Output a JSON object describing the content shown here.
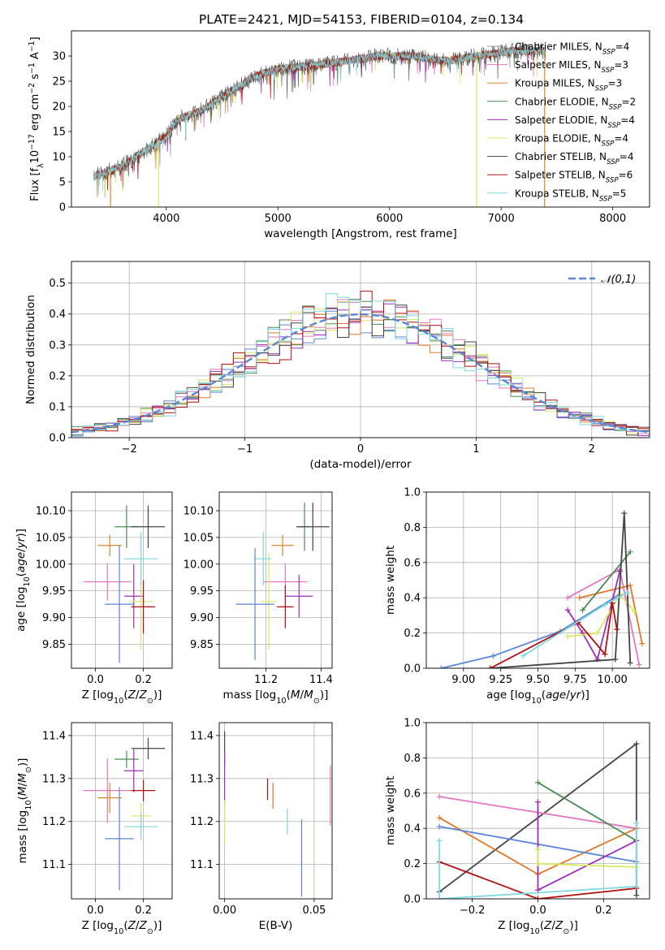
{
  "title": "PLATE=2421, MJD=54153, FIBERID=0104, z=0.134",
  "colors": {
    "chabrier_miles": "#9e9e9e",
    "salpeter_miles": "#e377c2",
    "kroupa_miles": "#d4892a",
    "chabrier_elodie": "#4c8a55",
    "salpeter_elodie": "#9b30b4",
    "kroupa_elodie": "#d8e860",
    "chabrier_stelib": "#444444",
    "salpeter_stelib": "#b01010",
    "kroupa_stelib": "#7fd8e0",
    "blue": "#5b86d6",
    "orange": "#e0782a",
    "normal": "#5b86d6",
    "grid": "#b0b0b0"
  },
  "chart_data": [
    {
      "id": "spectrum",
      "type": "line",
      "xlabel": "wavelength [Angstrom, rest frame]",
      "ylabel": "Flux [f_λ10^-17 erg cm^-2 s^-1 A^-1]",
      "xlim": [
        3150,
        8330
      ],
      "ylim": [
        0,
        35
      ],
      "xticks": [
        4000,
        5000,
        6000,
        7000,
        8000
      ],
      "yticks": [
        0,
        5,
        10,
        15,
        20,
        25,
        30
      ],
      "grid": false,
      "legend_position": "right",
      "legend": [
        {
          "label": "Chabrier MILES, N",
          "sub": "SSP",
          "tail": "=4"
        },
        {
          "label": "Salpeter MILES, N",
          "sub": "SSP",
          "tail": "=3"
        },
        {
          "label": "Kroupa MILES, N",
          "sub": "SSP",
          "tail": "=3"
        },
        {
          "label": "Chabrier ELODIE, N",
          "sub": "SSP",
          "tail": "=2"
        },
        {
          "label": "Salpeter ELODIE, N",
          "sub": "SSP",
          "tail": "=4"
        },
        {
          "label": "Kroupa ELODIE, N",
          "sub": "SSP",
          "tail": "=4"
        },
        {
          "label": "Chabrier STELIB, N",
          "sub": "SSP",
          "tail": "=4"
        },
        {
          "label": "Salpeter STELIB, N",
          "sub": "SSP",
          "tail": "=6"
        },
        {
          "label": "Kroupa STELIB, N",
          "sub": "SSP",
          "tail": "=5"
        }
      ],
      "continuum": {
        "x": [
          3350,
          3600,
          3800,
          4000,
          4100,
          4300,
          4500,
          4800,
          5000,
          5300,
          5600,
          5900,
          6200,
          6500,
          6800,
          7100,
          7400
        ],
        "y": [
          6,
          8,
          11,
          14,
          17.5,
          19,
          22,
          26,
          27.5,
          28,
          29,
          30,
          30,
          29,
          30,
          31,
          31
        ]
      },
      "dropouts": [
        {
          "x": 3500,
          "y": 0
        },
        {
          "x": 3930,
          "y": 0
        },
        {
          "x": 6780,
          "y": 0
        },
        {
          "x": 7390,
          "y": 0
        }
      ]
    },
    {
      "id": "residuals",
      "type": "histogram",
      "xlabel": "(data-model)/error",
      "ylabel": "Normed distribution",
      "xlim": [
        -2.5,
        2.5
      ],
      "ylim": [
        0,
        0.57
      ],
      "xticks": [
        -2,
        -1,
        0,
        1,
        2
      ],
      "yticks": [
        0.0,
        0.1,
        0.2,
        0.3,
        0.4,
        0.5
      ],
      "grid": true,
      "legend_position": "top-right",
      "series": [
        {
          "name": "𝒩(0,1)",
          "type": "gaussian",
          "mean": 0,
          "sigma": 1,
          "style": "dashed"
        }
      ],
      "bin_width": 0.1
    },
    {
      "id": "age_vs_Z",
      "type": "errorbar",
      "xlabel": "Z [log10(Z/Z⊙)]",
      "ylabel": "age  [log10(age/yr)]",
      "xlim": [
        -0.1,
        0.32
      ],
      "ylim": [
        9.805,
        10.135
      ],
      "xticks": [
        0.0,
        0.2
      ],
      "yticks": [
        9.85,
        9.9,
        9.95,
        10.0,
        10.05,
        10.1
      ],
      "grid": true,
      "points": [
        {
          "c": "salpeter_miles",
          "x": 0.05,
          "y": 9.967,
          "xe": 0.1,
          "ye": 0.035
        },
        {
          "c": "kroupa_miles",
          "x": 0.06,
          "y": 10.035,
          "xe": 0.05,
          "ye": 0.02
        },
        {
          "c": "chabrier_elodie",
          "x": 0.13,
          "y": 10.07,
          "xe": 0.05,
          "ye": 0.04
        },
        {
          "c": "salpeter_elodie",
          "x": 0.16,
          "y": 9.94,
          "xe": 0.04,
          "ye": 0.06
        },
        {
          "c": "kroupa_elodie",
          "x": 0.19,
          "y": 9.93,
          "xe": 0.05,
          "ye": 0.09
        },
        {
          "c": "chabrier_stelib",
          "x": 0.22,
          "y": 10.07,
          "xe": 0.07,
          "ye": 0.04
        },
        {
          "c": "salpeter_stelib",
          "x": 0.2,
          "y": 9.92,
          "xe": 0.05,
          "ye": 0.05
        },
        {
          "c": "kroupa_stelib",
          "x": 0.19,
          "y": 10.01,
          "xe": 0.07,
          "ye": 0.05
        },
        {
          "c": "blue",
          "x": 0.1,
          "y": 9.925,
          "xe": 0.06,
          "ye": 0.11
        }
      ]
    },
    {
      "id": "age_vs_mass",
      "type": "errorbar",
      "xlabel": "mass [log10(M/M⊙)]",
      "ylabel": "",
      "xlim": [
        11.03,
        11.44
      ],
      "ylim": [
        9.805,
        10.135
      ],
      "xticks": [
        11.2,
        11.4
      ],
      "yticks": [
        9.85,
        9.9,
        9.95,
        10.0,
        10.05,
        10.1
      ],
      "grid": true,
      "points": [
        {
          "c": "salpeter_miles",
          "x": 11.27,
          "y": 9.967,
          "xe": 0.08,
          "ye": 0.035
        },
        {
          "c": "kroupa_miles",
          "x": 11.26,
          "y": 10.035,
          "xe": 0.04,
          "ye": 0.02
        },
        {
          "c": "chabrier_elodie",
          "x": 11.34,
          "y": 10.07,
          "xe": 0.02,
          "ye": 0.045
        },
        {
          "c": "salpeter_elodie",
          "x": 11.32,
          "y": 9.94,
          "xe": 0.05,
          "ye": 0.04
        },
        {
          "c": "kroupa_elodie",
          "x": 11.21,
          "y": 9.93,
          "xe": 0.03,
          "ye": 0.09
        },
        {
          "c": "chabrier_stelib",
          "x": 11.37,
          "y": 10.07,
          "xe": 0.06,
          "ye": 0.045
        },
        {
          "c": "salpeter_stelib",
          "x": 11.27,
          "y": 9.92,
          "xe": 0.03,
          "ye": 0.04
        },
        {
          "c": "kroupa_stelib",
          "x": 11.19,
          "y": 10.01,
          "xe": 0.03,
          "ye": 0.05
        },
        {
          "c": "blue",
          "x": 11.16,
          "y": 9.925,
          "xe": 0.07,
          "ye": 0.105
        }
      ]
    },
    {
      "id": "mass_weight_vs_age",
      "type": "line",
      "xlabel": "age  [log10(age/yr)]",
      "ylabel": "mass weight",
      "xlim": [
        8.75,
        10.25
      ],
      "ylim": [
        0,
        1.0
      ],
      "xticks": [
        9.0,
        9.25,
        9.5,
        9.75,
        10.0
      ],
      "yticks": [
        0.0,
        0.2,
        0.4,
        0.6,
        0.8,
        1.0
      ],
      "grid": true,
      "series": [
        {
          "c": "blue",
          "x": [
            8.85,
            9.2,
            9.65,
            10.05
          ],
          "y": [
            0.0,
            0.07,
            0.21,
            0.42
          ]
        },
        {
          "c": "salpeter_miles",
          "x": [
            9.7,
            10.05,
            10.18
          ],
          "y": [
            0.4,
            0.56,
            0.02
          ]
        },
        {
          "c": "orange",
          "x": [
            9.78,
            10.12,
            10.2
          ],
          "y": [
            0.4,
            0.47,
            0.14
          ]
        },
        {
          "c": "chabrier_elodie",
          "x": [
            9.8,
            10.12
          ],
          "y": [
            0.33,
            0.66
          ]
        },
        {
          "c": "salpeter_elodie",
          "x": [
            9.7,
            9.8,
            9.9,
            10.05
          ],
          "y": [
            0.33,
            0.2,
            0.05,
            0.55
          ]
        },
        {
          "c": "kroupa_elodie",
          "x": [
            9.7,
            9.9,
            10.05,
            10.15
          ],
          "y": [
            0.18,
            0.2,
            0.42,
            0.32
          ]
        },
        {
          "c": "chabrier_stelib",
          "x": [
            9.18,
            10.02,
            10.08,
            10.12
          ],
          "y": [
            0.0,
            0.05,
            0.88,
            0.03
          ]
        },
        {
          "c": "salpeter_stelib",
          "x": [
            9.18,
            9.77,
            9.95,
            10.0,
            10.03
          ],
          "y": [
            0.0,
            0.26,
            0.08,
            0.37,
            0.22
          ]
        },
        {
          "c": "kroupa_stelib",
          "x": [
            9.4,
            9.95,
            10.1
          ],
          "y": [
            0.07,
            0.36,
            0.43
          ]
        }
      ]
    },
    {
      "id": "mass_vs_Z",
      "type": "errorbar",
      "xlabel": "Z [log10(Z/Z⊙)]",
      "ylabel": "mass [log10(M/M⊙)]",
      "xlim": [
        -0.1,
        0.32
      ],
      "ylim": [
        11.02,
        11.43
      ],
      "xticks": [
        0.0,
        0.2
      ],
      "yticks": [
        11.1,
        11.2,
        11.3,
        11.4
      ],
      "grid": true,
      "points": [
        {
          "c": "salpeter_miles",
          "x": 0.05,
          "y": 11.272,
          "xe": 0.1,
          "ye": 0.075
        },
        {
          "c": "kroupa_miles",
          "x": 0.06,
          "y": 11.255,
          "xe": 0.05,
          "ye": 0.035
        },
        {
          "c": "chabrier_elodie",
          "x": 0.13,
          "y": 11.345,
          "xe": 0.05,
          "ye": 0.02
        },
        {
          "c": "salpeter_elodie",
          "x": 0.16,
          "y": 11.318,
          "xe": 0.04,
          "ye": 0.05
        },
        {
          "c": "kroupa_elodie",
          "x": 0.19,
          "y": 11.213,
          "xe": 0.04,
          "ye": 0.03
        },
        {
          "c": "chabrier_stelib",
          "x": 0.22,
          "y": 11.37,
          "xe": 0.07,
          "ye": 0.025
        },
        {
          "c": "salpeter_stelib",
          "x": 0.2,
          "y": 11.272,
          "xe": 0.05,
          "ye": 0.025
        },
        {
          "c": "kroupa_stelib",
          "x": 0.19,
          "y": 11.188,
          "xe": 0.07,
          "ye": 0.03
        },
        {
          "c": "blue",
          "x": 0.1,
          "y": 11.16,
          "xe": 0.06,
          "ye": 0.12
        }
      ]
    },
    {
      "id": "mass_vs_ebv",
      "type": "errorbar",
      "xlabel": "E(B-V)",
      "ylabel": "",
      "xlim": [
        -0.003,
        0.06
      ],
      "ylim": [
        11.02,
        11.43
      ],
      "xticks": [
        0.0,
        0.05
      ],
      "yticks": [
        11.1,
        11.2,
        11.3,
        11.4
      ],
      "grid": true,
      "points": [
        {
          "c": "chabrier_stelib",
          "x": 0.0,
          "y": 11.37,
          "xe": 0,
          "ye": 0.04
        },
        {
          "c": "salpeter_elodie",
          "x": 0.0,
          "y": 11.3,
          "xe": 0,
          "ye": 0.06
        },
        {
          "c": "kroupa_elodie",
          "x": 0.0,
          "y": 11.2,
          "xe": 0,
          "ye": 0.05
        },
        {
          "c": "salpeter_stelib",
          "x": 0.024,
          "y": 11.275,
          "xe": 0,
          "ye": 0.025
        },
        {
          "c": "orange",
          "x": 0.027,
          "y": 11.26,
          "xe": 0,
          "ye": 0.03
        },
        {
          "c": "kroupa_stelib",
          "x": 0.035,
          "y": 11.2,
          "xe": 0,
          "ye": 0.03
        },
        {
          "c": "blue",
          "x": 0.043,
          "y": 11.115,
          "xe": 0,
          "ye": 0.09
        },
        {
          "c": "salpeter_miles",
          "x": 0.059,
          "y": 11.26,
          "xe": 0,
          "ye": 0.07
        }
      ]
    },
    {
      "id": "mass_weight_vs_Z",
      "type": "line",
      "xlabel": "Z [log10(Z/Z⊙)]",
      "ylabel": "mass weight",
      "xlim": [
        -0.34,
        0.34
      ],
      "ylim": [
        0,
        1.0
      ],
      "xticks": [
        -0.2,
        0.0,
        0.2
      ],
      "yticks": [
        0.0,
        0.2,
        0.4,
        0.6,
        0.8,
        1.0
      ],
      "grid": true,
      "series": [
        {
          "c": "chabrier_stelib",
          "x": [
            -0.3,
            0.3,
            0.3
          ],
          "y": [
            0.04,
            0.88,
            0.02
          ]
        },
        {
          "c": "salpeter_miles",
          "x": [
            -0.3,
            0.3
          ],
          "y": [
            0.58,
            0.4
          ]
        },
        {
          "c": "orange",
          "x": [
            -0.3,
            0.0,
            0.3
          ],
          "y": [
            0.46,
            0.14,
            0.4
          ]
        },
        {
          "c": "blue",
          "x": [
            -0.3,
            0.3
          ],
          "y": [
            0.41,
            0.21
          ]
        },
        {
          "c": "chabrier_elodie",
          "x": [
            0.0,
            0.3
          ],
          "y": [
            0.66,
            0.33
          ]
        },
        {
          "c": "salpeter_elodie",
          "x": [
            0.0,
            0.0,
            0.3
          ],
          "y": [
            0.55,
            0.05,
            0.33
          ]
        },
        {
          "c": "kroupa_elodie",
          "x": [
            0.0,
            0.0,
            0.3
          ],
          "y": [
            0.28,
            0.2,
            0.18
          ]
        },
        {
          "c": "salpeter_stelib",
          "x": [
            -0.3,
            0.0,
            0.3
          ],
          "y": [
            0.21,
            0.0,
            0.06
          ]
        },
        {
          "c": "kroupa_stelib",
          "x": [
            -0.3,
            -0.3,
            0.3,
            0.3
          ],
          "y": [
            0.33,
            0.0,
            0.07,
            0.43
          ]
        }
      ]
    }
  ]
}
